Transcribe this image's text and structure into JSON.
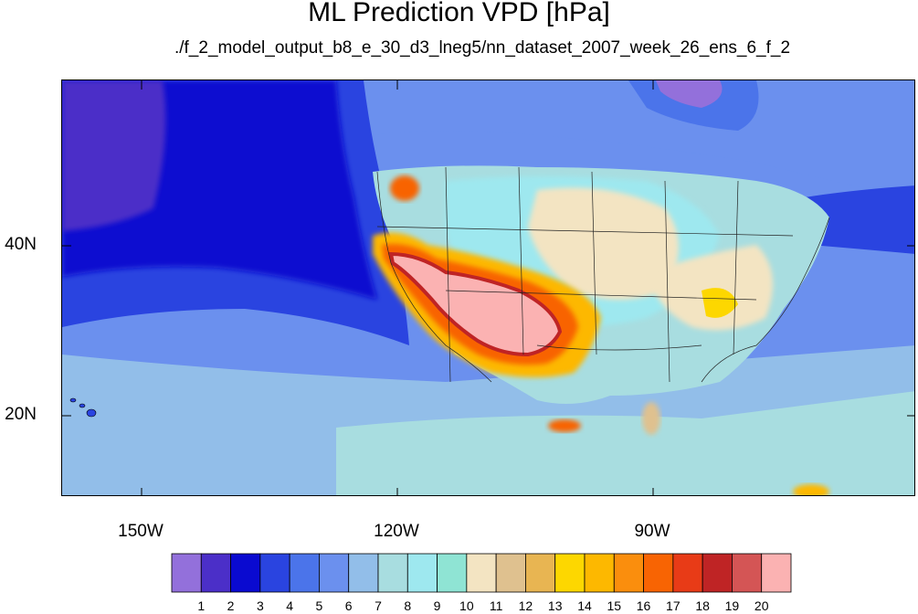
{
  "title": "ML Prediction VPD [hPa]",
  "subtitle": "./f_2_model_output_b8_e_30_d3_lneg5/nn_dataset_2007_week_26_ens_6_f_2",
  "axes": {
    "longitude_labels": [
      "150W",
      "120W",
      "90W"
    ],
    "latitude_labels": [
      "40N",
      "20N"
    ]
  },
  "colorbar": {
    "labels": [
      "1",
      "2",
      "3",
      "4",
      "5",
      "6",
      "7",
      "8",
      "9",
      "10",
      "11",
      "12",
      "13",
      "14",
      "15",
      "16",
      "17",
      "18",
      "19",
      "20"
    ],
    "colors": [
      "#9370db",
      "#4b2fc8",
      "#0a0ad0",
      "#2a44e0",
      "#4b74ea",
      "#6b90ee",
      "#92bee9",
      "#a8dde0",
      "#9ee8ef",
      "#8fe4d4",
      "#f3e4c2",
      "#dfc18f",
      "#e8b552",
      "#fdd700",
      "#fdb800",
      "#fa8e0d",
      "#f86403",
      "#e83b17",
      "#bf2425",
      "#d45555",
      "#fbb2b2"
    ]
  },
  "colors": {
    "ocean_deep": "#0a0ad0",
    "ocean_mid": "#2a44e0",
    "ocean_light": "#6b90ee",
    "land_humid": "#a8dde0",
    "land_dry_high": "#fbb2b2"
  }
}
